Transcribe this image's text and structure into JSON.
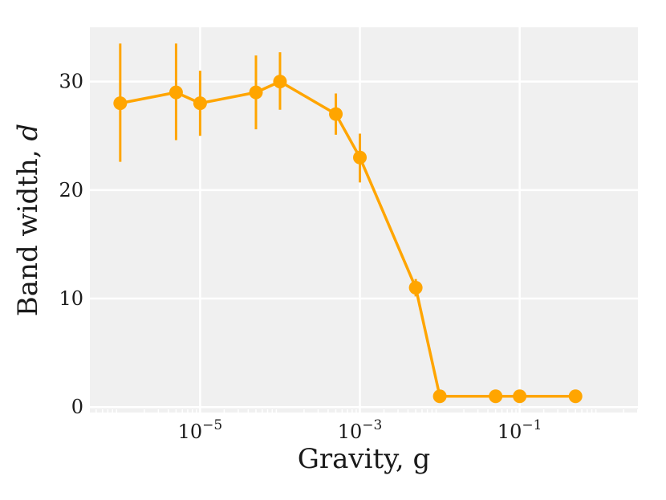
{
  "chart_data": {
    "type": "line",
    "xlabel": "Gravity, g",
    "ylabel_text": "Band width, ",
    "ylabel_var": "d",
    "xscale": "log",
    "x_tick_exponents": [
      -5,
      -3,
      -1
    ],
    "x_tick_base": "10",
    "y_ticks": [
      0,
      10,
      20,
      30
    ],
    "ylim": [
      -0.5,
      35
    ],
    "grid": true,
    "background": "#f0f0f0",
    "line_color": "#ffa500",
    "series": [
      {
        "x": [
          1e-06,
          5e-06,
          1e-05,
          5e-05,
          0.0001,
          0.0005,
          0.001,
          0.005,
          0.01,
          0.05,
          0.1,
          0.5
        ],
        "y": [
          28,
          29,
          28,
          29,
          30,
          27,
          23,
          11,
          1,
          1,
          1,
          1
        ],
        "err_low": [
          22.6,
          24.6,
          25.0,
          25.6,
          27.4,
          25.1,
          20.7,
          10.2,
          1,
          1,
          1,
          1
        ],
        "err_high": [
          33.5,
          33.5,
          31.0,
          32.4,
          32.7,
          28.9,
          25.2,
          11.8,
          1,
          1,
          1,
          1
        ]
      }
    ]
  }
}
